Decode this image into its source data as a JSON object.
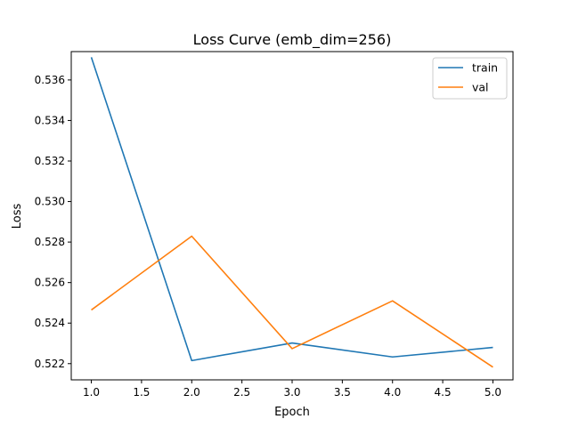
{
  "chart_data": {
    "type": "line",
    "title": "Loss Curve (emb_dim=256)",
    "xlabel": "Epoch",
    "ylabel": "Loss",
    "xlim": [
      0.8,
      5.2
    ],
    "ylim": [
      0.5212,
      0.5374
    ],
    "xticks": [
      1.0,
      1.5,
      2.0,
      2.5,
      3.0,
      3.5,
      4.0,
      4.5,
      5.0
    ],
    "xtick_labels": [
      "1.0",
      "1.5",
      "2.0",
      "2.5",
      "3.0",
      "3.5",
      "4.0",
      "4.5",
      "5.0"
    ],
    "yticks": [
      0.522,
      0.524,
      0.526,
      0.528,
      0.53,
      0.532,
      0.534,
      0.536
    ],
    "ytick_labels": [
      "0.522",
      "0.524",
      "0.526",
      "0.528",
      "0.530",
      "0.532",
      "0.534",
      "0.536"
    ],
    "x": [
      1.0,
      2.0,
      3.0,
      4.0,
      5.0
    ],
    "series": [
      {
        "name": "train",
        "color": "#1f77b4",
        "values": [
          0.53712,
          0.52215,
          0.52302,
          0.52233,
          0.5228
        ]
      },
      {
        "name": "val",
        "color": "#ff7f0e",
        "values": [
          0.52465,
          0.52829,
          0.52274,
          0.5251,
          0.52183
        ]
      }
    ],
    "grid": false,
    "legend": "top-right"
  }
}
